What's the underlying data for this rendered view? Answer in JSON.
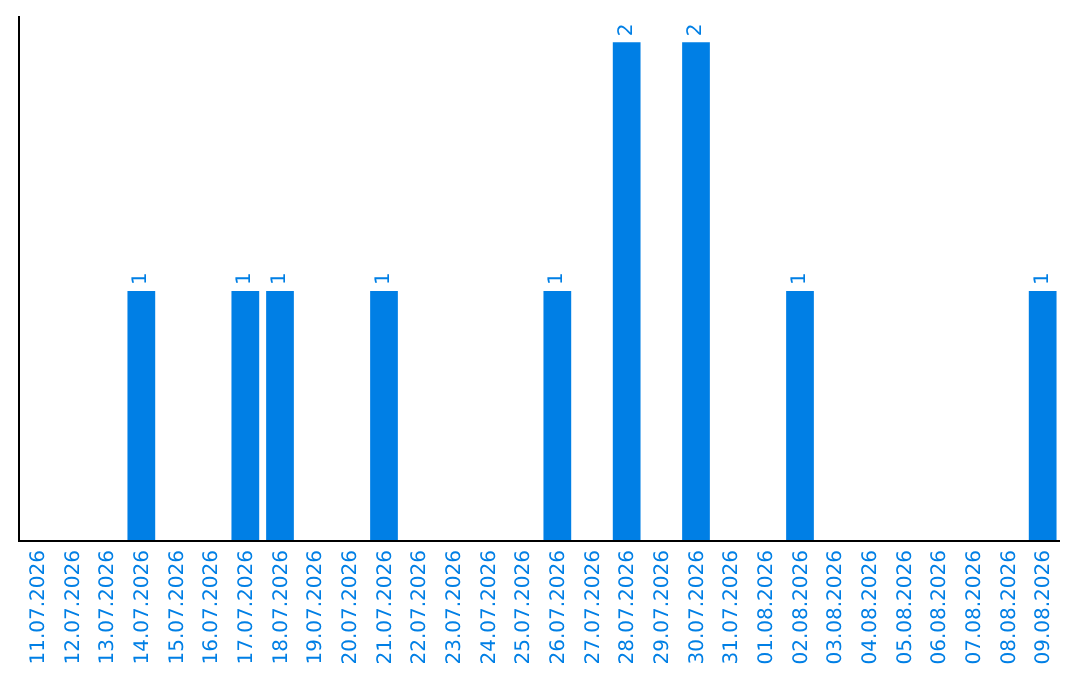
{
  "chart_data": {
    "type": "bar",
    "categories": [
      "11.07.2026",
      "12.07.2026",
      "13.07.2026",
      "14.07.2026",
      "15.07.2026",
      "16.07.2026",
      "17.07.2026",
      "18.07.2026",
      "19.07.2026",
      "20.07.2026",
      "21.07.2026",
      "22.07.2026",
      "23.07.2026",
      "24.07.2026",
      "25.07.2026",
      "26.07.2026",
      "27.07.2026",
      "28.07.2026",
      "29.07.2026",
      "30.07.2026",
      "31.07.2026",
      "01.08.2026",
      "02.08.2026",
      "03.08.2026",
      "04.08.2026",
      "05.08.2026",
      "06.08.2026",
      "07.08.2026",
      "08.08.2026",
      "09.08.2026"
    ],
    "values": [
      0,
      0,
      0,
      1,
      0,
      0,
      1,
      1,
      0,
      0,
      1,
      0,
      0,
      0,
      0,
      1,
      0,
      2,
      0,
      2,
      0,
      0,
      1,
      0,
      0,
      0,
      0,
      0,
      0,
      1
    ],
    "value_labels": [
      null,
      null,
      null,
      "1",
      null,
      null,
      "1",
      "1",
      null,
      null,
      "1",
      null,
      null,
      null,
      null,
      "1",
      null,
      "2",
      null,
      "2",
      null,
      null,
      "1",
      null,
      null,
      null,
      null,
      null,
      null,
      "1"
    ],
    "color": "#007fe5",
    "tick_labels": "x",
    "legend": false
  }
}
